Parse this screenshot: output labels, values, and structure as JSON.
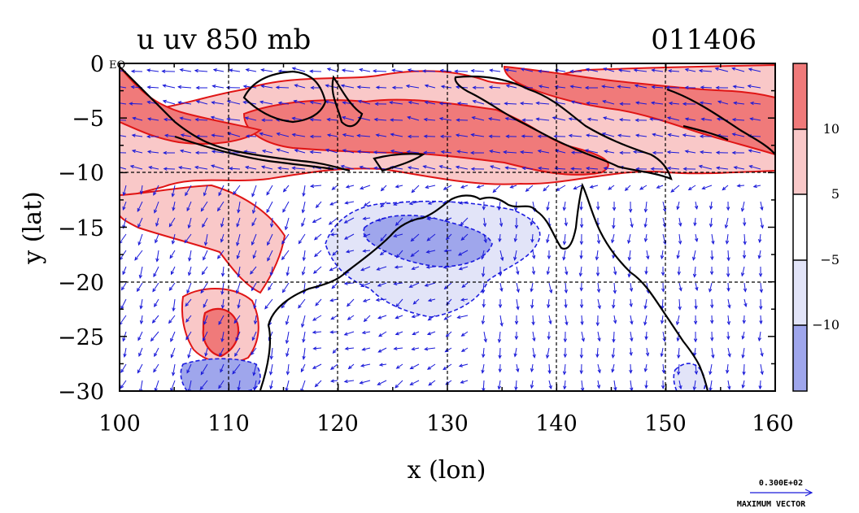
{
  "title": "u uv 850 mb",
  "date_code": "011406",
  "eq_label": "EQ",
  "xlabel": "x (lon)",
  "ylabel": "y (lat)",
  "x_ticks": [
    "100",
    "110",
    "120",
    "130",
    "140",
    "150",
    "160"
  ],
  "y_ticks": [
    "0",
    "−5",
    "−10",
    "−15",
    "−20",
    "−25",
    "−30"
  ],
  "colorbar_labels": [
    "10",
    "5",
    "−5",
    "−10"
  ],
  "vector_legend": {
    "value": "0.300E+02",
    "label": "MAXIMUM VECTOR"
  },
  "colors": {
    "pos_strong": "#f07a7a",
    "pos_weak": "#f9c8c8",
    "neg_weak": "#e2e4f8",
    "neg_strong": "#9fa6ec",
    "vector": "#1a1ad9",
    "contour_pos": "#e01515",
    "contour_neg": "#1c1ce0",
    "coast": "#000000"
  },
  "chart_data": {
    "type": "vector-field-contour-map",
    "variable": "u",
    "level": "850 mb",
    "xlim": [
      100,
      160
    ],
    "ylim": [
      -30,
      0
    ],
    "grid": true,
    "contour_levels": [
      -10,
      -5,
      5,
      10
    ],
    "max_vector": 30
  }
}
